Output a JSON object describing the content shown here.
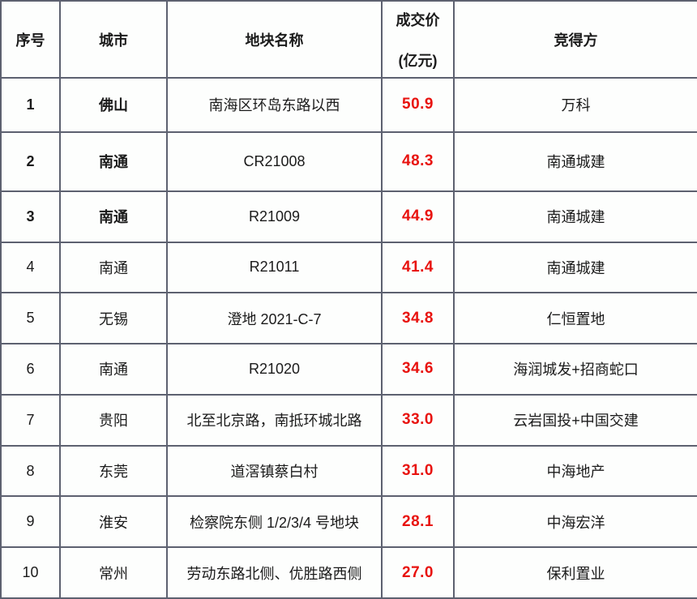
{
  "table": {
    "headers": {
      "index": "序号",
      "city": "城市",
      "parcel": "地块名称",
      "price_line1": "成交价",
      "price_line2": "(亿元)",
      "winner": "竞得方"
    },
    "rows": [
      {
        "index": "1",
        "city": "佛山",
        "parcel": "南海区环岛东路以西",
        "price": "50.9",
        "winner": "万科",
        "emphasis": true
      },
      {
        "index": "2",
        "city": "南通",
        "parcel": "CR21008",
        "price": "48.3",
        "winner": "南通城建",
        "emphasis": true
      },
      {
        "index": "3",
        "city": "南通",
        "parcel": "R21009",
        "price": "44.9",
        "winner": "南通城建",
        "emphasis": true
      },
      {
        "index": "4",
        "city": "南通",
        "parcel": "R21011",
        "price": "41.4",
        "winner": "南通城建",
        "emphasis": false
      },
      {
        "index": "5",
        "city": "无锡",
        "parcel": "澄地 2021-C-7",
        "price": "34.8",
        "winner": "仁恒置地",
        "emphasis": false
      },
      {
        "index": "6",
        "city": "南通",
        "parcel": "R21020",
        "price": "34.6",
        "winner": "海润城发+招商蛇口",
        "emphasis": false
      },
      {
        "index": "7",
        "city": "贵阳",
        "parcel": "北至北京路，南抵环城北路",
        "price": "33.0",
        "winner": "云岩国投+中国交建",
        "emphasis": false
      },
      {
        "index": "8",
        "city": "东莞",
        "parcel": "道滘镇蔡白村",
        "price": "31.0",
        "winner": "中海地产",
        "emphasis": false
      },
      {
        "index": "9",
        "city": "淮安",
        "parcel": "检察院东侧 1/2/3/4 号地块",
        "price": "28.1",
        "winner": "中海宏洋",
        "emphasis": false
      },
      {
        "index": "10",
        "city": "常州",
        "parcel": "劳动东路北侧、优胜路西侧",
        "price": "27.0",
        "winner": "保利置业",
        "emphasis": false
      }
    ]
  },
  "chart_data": {
    "type": "table",
    "title": "",
    "columns": [
      "序号",
      "城市",
      "地块名称",
      "成交价 (亿元)",
      "竞得方"
    ],
    "rows": [
      [
        "1",
        "佛山",
        "南海区环岛东路以西",
        50.9,
        "万科"
      ],
      [
        "2",
        "南通",
        "CR21008",
        48.3,
        "南通城建"
      ],
      [
        "3",
        "南通",
        "R21009",
        44.9,
        "南通城建"
      ],
      [
        "4",
        "南通",
        "R21011",
        41.4,
        "南通城建"
      ],
      [
        "5",
        "无锡",
        "澄地 2021-C-7",
        34.8,
        "仁恒置地"
      ],
      [
        "6",
        "南通",
        "R21020",
        34.6,
        "海润城发+招商蛇口"
      ],
      [
        "7",
        "贵阳",
        "北至北京路，南抵环城北路",
        33.0,
        "云岩国投+中国交建"
      ],
      [
        "8",
        "东莞",
        "道滘镇蔡白村",
        31.0,
        "中海地产"
      ],
      [
        "9",
        "淮安",
        "检察院东侧 1/2/3/4 号地块",
        28.1,
        "中海宏洋"
      ],
      [
        "10",
        "常州",
        "劳动东路北侧、优胜路西侧",
        27.0,
        "保利置业"
      ]
    ]
  },
  "colors": {
    "price_red": "#e8120e",
    "border": "#5d6170",
    "text": "#1b1b1b",
    "background": "#fdfefd"
  }
}
